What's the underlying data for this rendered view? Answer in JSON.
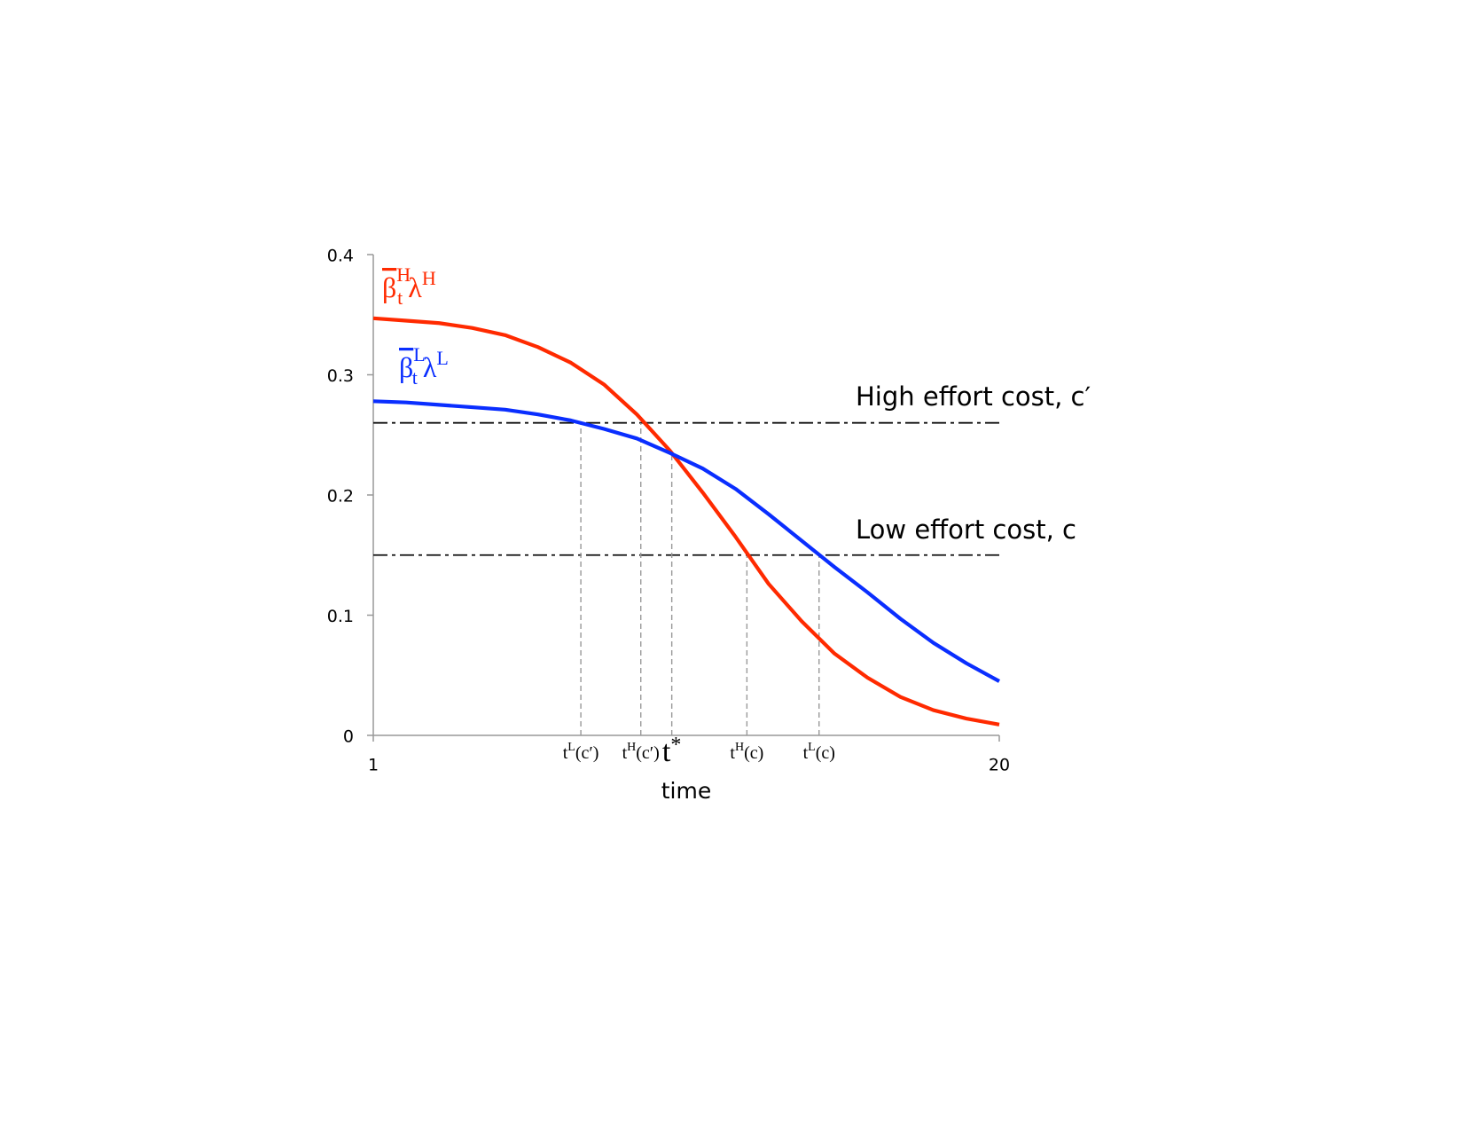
{
  "chart_data": {
    "type": "line",
    "x": [
      1,
      2,
      3,
      4,
      5,
      6,
      7,
      8,
      9,
      10,
      11,
      12,
      13,
      14,
      15,
      16,
      17,
      18,
      19,
      20
    ],
    "series": [
      {
        "name": {
          "symbol": "β",
          "sub": "t",
          "sup": "H",
          "factor": "λ",
          "factor_sup": "H"
        },
        "color": "#ff2a00",
        "values": [
          0.347,
          0.345,
          0.343,
          0.339,
          0.333,
          0.323,
          0.31,
          0.292,
          0.267,
          0.237,
          0.202,
          0.165,
          0.126,
          0.095,
          0.068,
          0.048,
          0.032,
          0.021,
          0.014,
          0.009
        ]
      },
      {
        "name": {
          "symbol": "β",
          "sub": "t",
          "sup": "L",
          "factor": "λ",
          "factor_sup": "L"
        },
        "color": "#0a2eff",
        "values": [
          0.278,
          0.277,
          0.275,
          0.273,
          0.271,
          0.267,
          0.262,
          0.255,
          0.247,
          0.235,
          0.222,
          0.205,
          0.184,
          0.162,
          0.14,
          0.119,
          0.097,
          0.077,
          0.06,
          0.045
        ]
      }
    ],
    "xlim": [
      1,
      20
    ],
    "xticks": [
      1,
      20
    ],
    "ylim": [
      0,
      0.4
    ],
    "yticks": [
      0,
      0.1,
      0.2,
      0.3,
      0.4
    ],
    "x_label": "time",
    "hlines": [
      {
        "y": 0.26,
        "label": "High effort cost, c′"
      },
      {
        "y": 0.15,
        "label": "Low effort cost, c"
      }
    ],
    "markers": [
      {
        "x": 7.3,
        "y": 0.26,
        "base": "t",
        "sup": "L",
        "tail": "(c′)"
      },
      {
        "x": 9.12,
        "y": 0.26,
        "base": "t",
        "sup": "H",
        "tail": "(c′)"
      },
      {
        "x": 10.06,
        "y": 0.235,
        "base": "t",
        "sup": "*"
      },
      {
        "x": 12.34,
        "y": 0.15,
        "base": "t",
        "sup": "H",
        "tail": "(c)"
      },
      {
        "x": 14.53,
        "y": 0.15,
        "base": "t",
        "sup": "L",
        "tail": "(c)"
      }
    ]
  }
}
